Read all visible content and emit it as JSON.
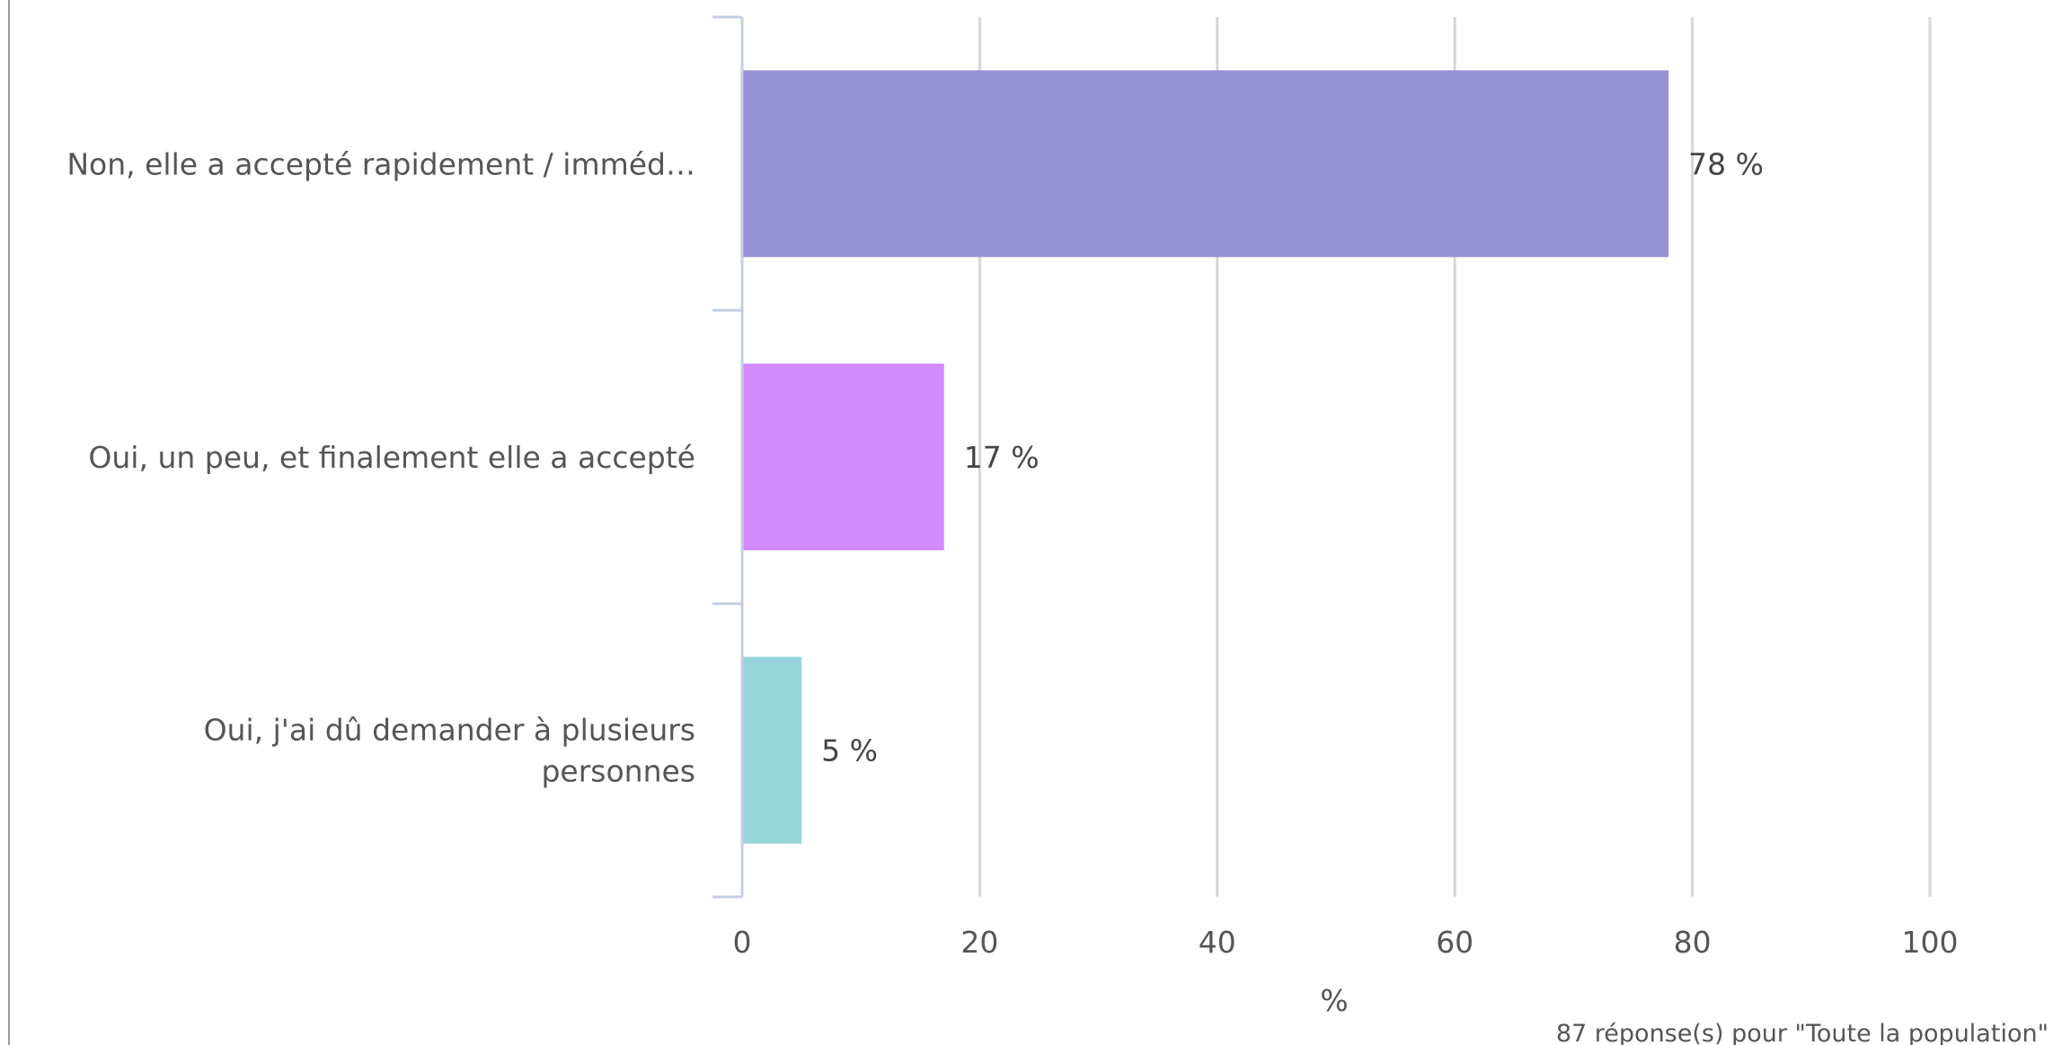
{
  "chart_data": {
    "type": "bar",
    "orientation": "horizontal",
    "categories": [
      [
        "Non, elle a accepté rapidement / imméd…"
      ],
      [
        "Oui, un peu, et finalement elle a accepté"
      ],
      [
        "Oui, j'ai dû demander à plusieurs",
        "personnes"
      ]
    ],
    "values": [
      78,
      17,
      5
    ],
    "value_labels": [
      "78 %",
      "17 %",
      "5 %"
    ],
    "colors": [
      "#9690d4",
      "#d38bfd",
      "#94d4da"
    ],
    "xlim": [
      0,
      100
    ],
    "xticks": [
      0,
      20,
      40,
      60,
      80,
      100
    ],
    "xlabel": "%",
    "ylabel": "",
    "grid": true,
    "footnote": "87 réponse(s) pour \"Toute la population\""
  }
}
